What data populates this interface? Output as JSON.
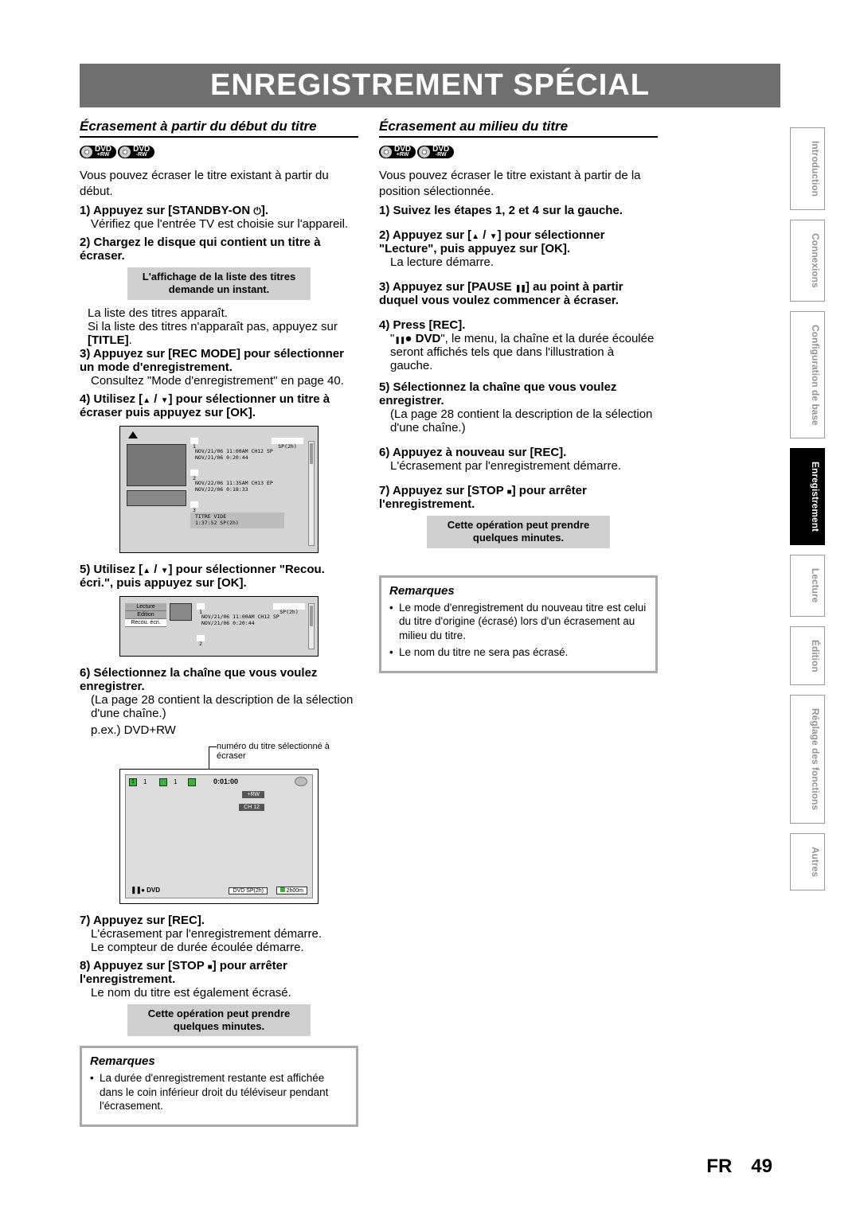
{
  "title": "ENREGISTREMENT SPÉCIAL",
  "pageLang": "FR",
  "pageNum": "49",
  "sidetabs": [
    {
      "label": "Introduction",
      "active": false
    },
    {
      "label": "Connexions",
      "active": false
    },
    {
      "label": "Configuration de base",
      "active": false
    },
    {
      "label": "Enregistrement",
      "active": true
    },
    {
      "label": "Lecture",
      "active": false
    },
    {
      "label": "Édition",
      "active": false
    },
    {
      "label": "Réglage des fonctions",
      "active": false
    },
    {
      "label": "Autres",
      "active": false
    }
  ],
  "dvdBadges": {
    "a": "DVD",
    "asub": "+RW",
    "b": "DVD",
    "bsub": "-RW"
  },
  "left": {
    "heading": "Écrasement à partir du début du titre",
    "intro": "Vous pouvez écraser le titre existant à partir du début.",
    "s1h": "1) Appuyez sur [STANDBY-ON ",
    "s1h2": "].",
    "s1b": "Vérifiez que l'entrée TV est choisie sur l'appareil.",
    "s2h": "2) Chargez le disque qui contient un titre à écraser.",
    "box1": "L'affichage de la liste des titres demande un instant.",
    "s2b1": "La liste des titres apparaît.",
    "s2b2a": "Si la liste des titres n'apparaît pas, appuyez sur ",
    "s2b2b": "[TITLE]",
    "s2b2c": ".",
    "s3h": "3) Appuyez sur [REC MODE] pour sélectionner un mode d'enregistrement.",
    "s3b": "Consultez \"Mode d'enregistrement\" en page 40.",
    "s4h1": "4) Utilisez [",
    "s4h2": " / ",
    "s4h3": "] pour sélectionner un titre à écraser puis appuyez sur [OK].",
    "s5h1": "5) Utilisez [",
    "s5h2": " / ",
    "s5h3": "] pour sélectionner \"Recou. écri.\", puis appuyez sur [OK].",
    "s6h": "6) Sélectionnez la chaîne que vous voulez enregistrer.",
    "s6b": "(La page 28 contient la description de la sélection d'une chaîne.)",
    "s6ex": "p.ex.) DVD+RW",
    "callout": "numéro du titre sélectionné à écraser",
    "s7h": "7) Appuyez sur [REC].",
    "s7b1": "L'écrasement par l'enregistrement démarre.",
    "s7b2": "Le compteur de durée écoulée démarre.",
    "s8h1": "8) Appuyez sur [STOP ",
    "s8h2": "] pour arrêter l'enregistrement.",
    "s8b": "Le nom du titre est également écrasé.",
    "box2": "Cette opération peut prendre quelques minutes.",
    "notesHead": "Remarques",
    "note1": "La durée d'enregistrement restante est affichée dans le coin inférieur droit du téléviseur pendant l'écrasement."
  },
  "fig1": {
    "mode": "SP(2h)",
    "r1a": "NOV/21/06  11:00AM CH12 SP",
    "r1b": "NOV/21/06   0:20:44",
    "r2a": "NOV/22/06  11:35AM CH13 EP",
    "r2b": "NOV/22/06   0:18:33",
    "r3a": "TITRE VIDE",
    "r3b": "1:37:52  SP(2h)"
  },
  "fig2": {
    "m1": "Lecture",
    "m2": "Edition",
    "m3": "Recou. écri.",
    "mode": "SP(2h)",
    "a": "NOV/21/06  11:00AM CH12 SP",
    "b": "NOV/21/06   0:20:44"
  },
  "fig3": {
    "time": "0:01:00",
    "fmt": "+RW",
    "ch": "CH  12",
    "bl": "DVD",
    "br1": "DVD SP(2h)",
    "br2": "2h00m"
  },
  "right": {
    "heading": "Écrasement au milieu du titre",
    "intro": "Vous pouvez écraser le titre existant à partir de la position sélectionnée.",
    "s1h": "1) Suivez les étapes 1, 2 et 4 sur la gauche.",
    "s2h1": "2) Appuyez sur [",
    "s2h2": " / ",
    "s2h3": "] pour sélectionner \"Lecture\", puis appuyez sur [OK].",
    "s2b": "La lecture démarre.",
    "s3h1": "3) Appuyez sur [PAUSE ",
    "s3h2": "] au point à partir duquel vous voulez commencer à écraser.",
    "s4h": "4) Press [REC].",
    "s4b1": "\"",
    "s4b2": " DVD",
    "s4b3": "\", le menu, la chaîne et la durée écoulée seront affichés tels que dans l'illustration à gauche.",
    "s5h": "5) Sélectionnez la chaîne que vous voulez enregistrer.",
    "s5b": "(La page 28 contient la description de la sélection d'une chaîne.)",
    "s6h": "6) Appuyez à nouveau sur [REC].",
    "s6b": "L'écrasement par l'enregistrement démarre.",
    "s7h1": "7) Appuyez sur [STOP ",
    "s7h2": "] pour arrêter l'enregistrement.",
    "box": "Cette opération peut prendre quelques minutes.",
    "notesHead": "Remarques",
    "note1": "Le mode d'enregistrement du nouveau titre est celui du titre d'origine (écrasé) lors d'un écrasement au milieu du titre.",
    "note2": "Le nom du titre ne sera pas écrasé."
  }
}
